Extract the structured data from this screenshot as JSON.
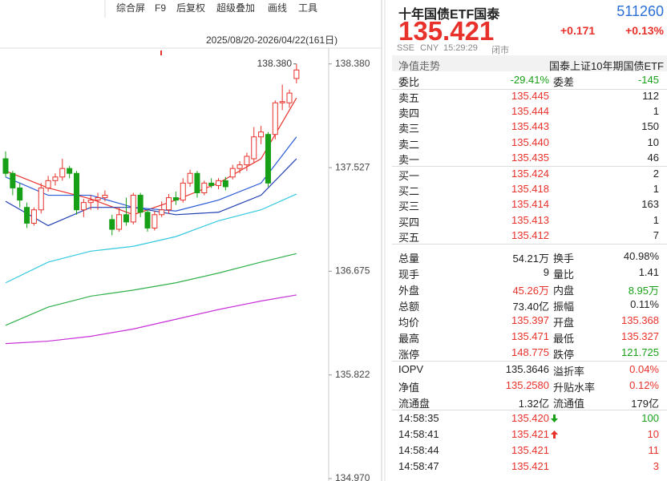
{
  "toolbar": [
    "综合屏",
    "F9",
    "后复权",
    "超级叠加",
    "画线",
    "工具"
  ],
  "chart_data": {
    "type": "candlestick",
    "date_range": "2025/08/20-2026/04/22(161日)",
    "max_label": {
      "value": 138.38,
      "label": "138.380"
    },
    "ylim": [
      134.95,
      138.51
    ],
    "yticks": [
      {
        "value": 138.38,
        "label": "138.380"
      },
      {
        "value": 137.527,
        "label": "137.527"
      },
      {
        "value": 136.675,
        "label": "136.675"
      },
      {
        "value": 135.822,
        "label": "135.822"
      },
      {
        "value": 134.97,
        "label": "134.970"
      }
    ],
    "up_color": "#e8312b",
    "down_color": "#17a017",
    "candles": [
      [
        137.6,
        137.48,
        137.66,
        137.45
      ],
      [
        137.48,
        137.36,
        137.5,
        137.3
      ],
      [
        137.36,
        137.26,
        137.4,
        137.2
      ],
      [
        137.2,
        137.07,
        137.24,
        137.03
      ],
      [
        137.07,
        137.18,
        137.2,
        137.05
      ],
      [
        137.18,
        137.36,
        137.4,
        137.15
      ],
      [
        137.36,
        137.42,
        137.46,
        137.33
      ],
      [
        137.42,
        137.45,
        137.48,
        137.38
      ],
      [
        137.45,
        137.52,
        137.6,
        137.42
      ],
      [
        137.52,
        137.48,
        137.54,
        137.44
      ],
      [
        137.48,
        137.18,
        137.5,
        137.14
      ],
      [
        137.18,
        137.24,
        137.27,
        137.12
      ],
      [
        137.24,
        137.26,
        137.3,
        137.18
      ],
      [
        137.26,
        137.28,
        137.32,
        137.18
      ],
      [
        137.28,
        137.3,
        137.34,
        137.25
      ],
      [
        137.1,
        137.02,
        137.14,
        136.97
      ],
      [
        137.02,
        137.14,
        137.2,
        137.0
      ],
      [
        137.14,
        137.08,
        137.28,
        137.05
      ],
      [
        137.08,
        137.3,
        137.32,
        137.06
      ],
      [
        137.3,
        137.16,
        137.32,
        137.12
      ],
      [
        137.16,
        137.03,
        137.18,
        137.0
      ],
      [
        137.03,
        137.14,
        137.17,
        137.01
      ],
      [
        137.14,
        137.18,
        137.25,
        137.12
      ],
      [
        137.18,
        137.28,
        137.31,
        137.15
      ],
      [
        137.28,
        137.26,
        137.33,
        137.22
      ],
      [
        137.26,
        137.4,
        137.44,
        137.24
      ],
      [
        137.4,
        137.48,
        137.51,
        137.37
      ],
      [
        137.48,
        137.32,
        137.5,
        137.28
      ],
      [
        137.32,
        137.4,
        137.42,
        137.3
      ],
      [
        137.4,
        137.38,
        137.44,
        137.36
      ],
      [
        137.38,
        137.42,
        137.44,
        137.35
      ],
      [
        137.42,
        137.37,
        137.45,
        137.34
      ],
      [
        137.45,
        137.52,
        137.55,
        137.43
      ],
      [
        137.52,
        137.55,
        137.58,
        137.48
      ],
      [
        137.55,
        137.62,
        137.65,
        137.5
      ],
      [
        137.6,
        137.78,
        137.86,
        137.57
      ],
      [
        137.78,
        137.82,
        137.87,
        137.72
      ],
      [
        137.8,
        137.4,
        137.82,
        137.37
      ],
      [
        137.8,
        138.06,
        138.08,
        137.76
      ],
      [
        138.06,
        138.07,
        138.21,
        138.0
      ],
      [
        138.06,
        138.14,
        138.17,
        138.02
      ],
      [
        138.26,
        138.33,
        138.38,
        138.22
      ]
    ],
    "x": [
      0,
      6,
      12,
      18,
      24,
      30,
      36,
      41
    ],
    "series": [
      {
        "color": "#e8312b",
        "values": [
          137.5,
          137.36,
          137.27,
          137.14,
          137.26,
          137.4,
          137.6,
          138.1
        ]
      },
      {
        "color": "#2a5bd7",
        "values": [
          137.45,
          137.3,
          137.3,
          137.2,
          137.17,
          137.26,
          137.4,
          137.78
        ]
      },
      {
        "color": "#1f3fb0",
        "values": [
          137.25,
          137.05,
          137.2,
          137.2,
          137.14,
          137.16,
          137.3,
          137.6
        ]
      },
      {
        "color": "#33c9e0",
        "values": [
          136.58,
          136.75,
          136.84,
          136.88,
          136.96,
          137.09,
          137.18,
          137.31
        ]
      },
      {
        "color": "#2fb04a",
        "values": [
          136.23,
          136.38,
          136.47,
          136.52,
          136.58,
          136.66,
          136.75,
          136.82
        ]
      },
      {
        "color": "#c830d8",
        "values": [
          136.08,
          136.1,
          136.14,
          136.2,
          136.28,
          136.36,
          136.43,
          136.48
        ]
      }
    ]
  },
  "quote": {
    "name": "十年国债ETF国泰",
    "code": "511260",
    "price": "135.421",
    "change": "+0.171",
    "change_pct": "+0.13%",
    "exchange": "SSE",
    "currency": "CNY",
    "time": "15:29:29",
    "status": "闭市"
  },
  "nav_trend": "净值走势",
  "index_name": "国泰上证10年期国债ETF",
  "order_ratio": [
    "委比",
    "-29.41%",
    "委差",
    "-145"
  ],
  "asks": [
    [
      "卖五",
      "135.445",
      "112"
    ],
    [
      "卖四",
      "135.444",
      "1"
    ],
    [
      "卖三",
      "135.443",
      "150"
    ],
    [
      "卖二",
      "135.440",
      "10"
    ],
    [
      "卖一",
      "135.435",
      "46"
    ]
  ],
  "bids": [
    [
      "买一",
      "135.424",
      "2"
    ],
    [
      "买二",
      "135.418",
      "1"
    ],
    [
      "买三",
      "135.414",
      "163"
    ],
    [
      "买四",
      "135.413",
      "1"
    ],
    [
      "买五",
      "135.412",
      "7"
    ]
  ],
  "stats": [
    [
      "总量",
      "54.21万",
      "换手",
      "40.98%"
    ],
    [
      "现手",
      "9",
      "量比",
      "1.41"
    ],
    [
      "外盘",
      "45.26万",
      "内盘",
      "8.95万"
    ],
    [
      "总额",
      "73.40亿",
      "振幅",
      "0.11%"
    ],
    [
      "均价",
      "135.397",
      "开盘",
      "135.368"
    ],
    [
      "最高",
      "135.471",
      "最低",
      "135.327"
    ],
    [
      "涨停",
      "148.775",
      "跌停",
      "121.725"
    ]
  ],
  "stats_colors": [
    [
      "#222",
      "#222"
    ],
    [
      "#222",
      "#222"
    ],
    [
      "#e8312b",
      "#17a017"
    ],
    [
      "#222",
      "#222"
    ],
    [
      "#e8312b",
      "#e8312b"
    ],
    [
      "#e8312b",
      "#e8312b"
    ],
    [
      "#e8312b",
      "#17a017"
    ]
  ],
  "iopv": [
    [
      "IOPV",
      "135.3646",
      "溢折率",
      "0.04%"
    ],
    [
      "净值",
      "135.2580",
      "升贴水率",
      "0.12%"
    ],
    [
      "流通盘",
      "1.32亿",
      "流通值",
      "179亿"
    ]
  ],
  "iopv_colors": [
    [
      "#222",
      "#e8312b"
    ],
    [
      "#e8312b",
      "#e8312b"
    ],
    [
      "#222",
      "#222"
    ]
  ],
  "trades": [
    [
      "14:58:35",
      "135.420",
      "100"
    ],
    [
      "14:58:41",
      "135.421",
      "10"
    ],
    [
      "14:58:44",
      "135.421",
      "11"
    ],
    [
      "14:58:47",
      "135.421",
      "3"
    ]
  ],
  "trade_dirs": [
    "down",
    "up",
    null,
    null
  ],
  "trade_vol_colors": [
    "#17a017",
    "#e8312b",
    "#e8312b",
    "#e8312b"
  ]
}
